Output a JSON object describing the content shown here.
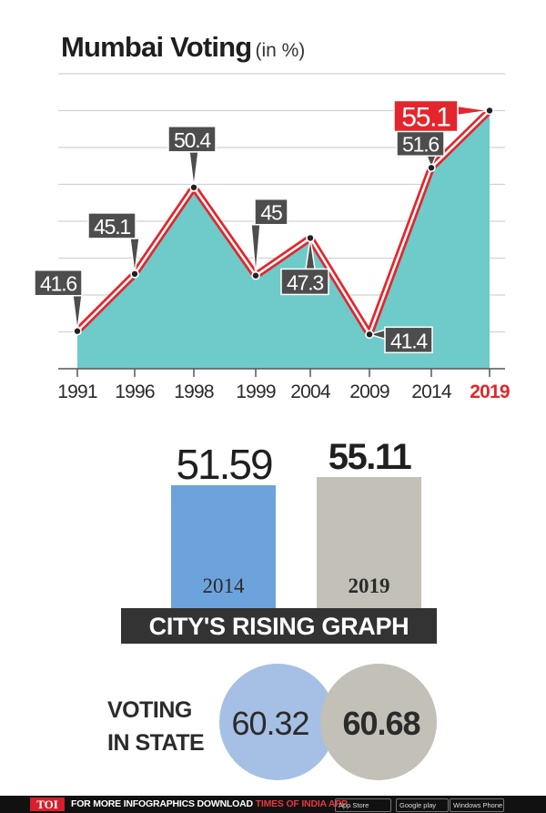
{
  "title": "Mumbai Voting",
  "title_unit": "(in %)",
  "chart_data": [
    {
      "type": "area",
      "title": "Mumbai Voting",
      "unit": "(in %)",
      "categories": [
        "1991",
        "1996",
        "1998",
        "1999",
        "2004",
        "2009",
        "2014",
        "2019"
      ],
      "values": [
        41.6,
        45.1,
        50.4,
        45,
        47.3,
        41.4,
        51.6,
        55.1
      ],
      "value_labels": [
        "41.6",
        "45.1",
        "50.4",
        "45",
        "47.3",
        "41.4",
        "51.6",
        "55.1"
      ],
      "highlight_category": "2019",
      "ylim": [
        39.3,
        57.3
      ],
      "grid": true,
      "colors": {
        "fill": "#6ecbc9",
        "line": "#e3262d",
        "label_bg": "#4d4d4d",
        "highlight": "#e3262d",
        "grid": "#cfd3d3"
      }
    },
    {
      "type": "bar",
      "title": "CITY'S RISING GRAPH",
      "categories": [
        "2014",
        "2019"
      ],
      "values": [
        51.59,
        55.11
      ],
      "value_labels": [
        "51.59",
        "55.11"
      ],
      "colors": [
        "#6da3dc",
        "#c2c0b7"
      ]
    }
  ],
  "city_title": "CITY'S RISING GRAPH",
  "state": {
    "label": "VOTING IN STATE",
    "values": [
      "60.32",
      "60.68"
    ],
    "colors": [
      "#a5c0e4",
      "#c2c0b7"
    ]
  },
  "footer": {
    "logo": "TOI",
    "msg_prefix": "FOR MORE  INFOGRAPHICS DOWNLOAD",
    "msg_app": "TIMES OF INDIA  APP",
    "badges": [
      "App Store",
      "Google play",
      "Windows Phone"
    ]
  }
}
